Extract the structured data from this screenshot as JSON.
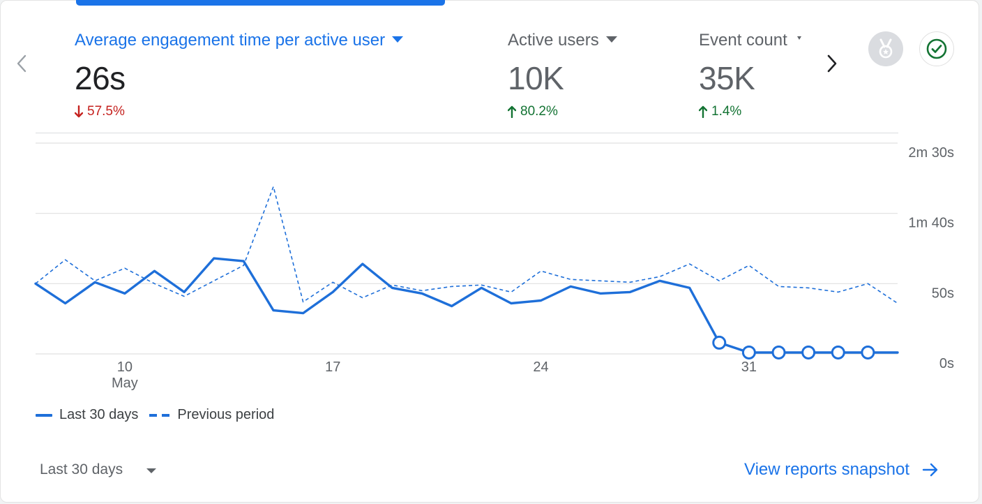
{
  "metrics": [
    {
      "label": "Average engagement time per active user",
      "value": "26s",
      "delta": "57.5%",
      "direction": "down",
      "active": true
    },
    {
      "label": "Active users",
      "value": "10K",
      "delta": "80.2%",
      "direction": "up",
      "active": false
    },
    {
      "label": "Event count",
      "value": "35K",
      "delta": "1.4%",
      "direction": "up",
      "active": false
    }
  ],
  "icons": {
    "prev": "chevron-left-icon",
    "next": "chevron-right-icon",
    "badge": "medal-icon",
    "check": "check-circle-icon"
  },
  "colors": {
    "accent": "#1a73e8",
    "line": "#1e6fd9",
    "down": "#c5221f",
    "up": "#137333",
    "grid": "#e0e0e0",
    "muted": "#5f6368"
  },
  "chart_data": {
    "type": "line",
    "y_unit": "seconds",
    "ylim": [
      0,
      150
    ],
    "yticks": [
      {
        "value": 150,
        "label": "2m 30s"
      },
      {
        "value": 100,
        "label": "1m 40s"
      },
      {
        "value": 50,
        "label": "50s"
      },
      {
        "value": 0,
        "label": "0s"
      }
    ],
    "x_start": "2024-05-07",
    "x_end": "2024-06-05",
    "xticks": [
      {
        "date": "2024-05-10",
        "label": "10",
        "sublabel": "May"
      },
      {
        "date": "2024-05-17",
        "label": "17",
        "sublabel": ""
      },
      {
        "date": "2024-05-24",
        "label": "24",
        "sublabel": ""
      },
      {
        "date": "2024-05-31",
        "label": "31",
        "sublabel": ""
      }
    ],
    "grid": true,
    "legend_position": "bottom-left",
    "series": [
      {
        "name": "Last 30 days",
        "style": "solid",
        "values": [
          {
            "x": "2024-05-07",
            "y": 50
          },
          {
            "x": "2024-05-08",
            "y": 36
          },
          {
            "x": "2024-05-09",
            "y": 51
          },
          {
            "x": "2024-05-10",
            "y": 43
          },
          {
            "x": "2024-05-11",
            "y": 59
          },
          {
            "x": "2024-05-12",
            "y": 44
          },
          {
            "x": "2024-05-13",
            "y": 68
          },
          {
            "x": "2024-05-14",
            "y": 66
          },
          {
            "x": "2024-05-15",
            "y": 31
          },
          {
            "x": "2024-05-16",
            "y": 29
          },
          {
            "x": "2024-05-17",
            "y": 44
          },
          {
            "x": "2024-05-18",
            "y": 64
          },
          {
            "x": "2024-05-19",
            "y": 47
          },
          {
            "x": "2024-05-20",
            "y": 43
          },
          {
            "x": "2024-05-21",
            "y": 34
          },
          {
            "x": "2024-05-22",
            "y": 47
          },
          {
            "x": "2024-05-23",
            "y": 36
          },
          {
            "x": "2024-05-24",
            "y": 38
          },
          {
            "x": "2024-05-25",
            "y": 48
          },
          {
            "x": "2024-05-26",
            "y": 43
          },
          {
            "x": "2024-05-27",
            "y": 44
          },
          {
            "x": "2024-05-28",
            "y": 52
          },
          {
            "x": "2024-05-29",
            "y": 47
          },
          {
            "x": "2024-05-30",
            "y": 8
          },
          {
            "x": "2024-05-31",
            "y": 1
          },
          {
            "x": "2024-06-01",
            "y": 1
          },
          {
            "x": "2024-06-02",
            "y": 1
          },
          {
            "x": "2024-06-03",
            "y": 1
          },
          {
            "x": "2024-06-04",
            "y": 1
          },
          {
            "x": "2024-06-05",
            "y": 1
          }
        ],
        "hollow_marker_from": "2024-05-30",
        "hollow_marker_to": "2024-06-04"
      },
      {
        "name": "Previous period",
        "style": "dashed",
        "values": [
          {
            "x": "2024-05-07",
            "y": 50
          },
          {
            "x": "2024-05-08",
            "y": 67
          },
          {
            "x": "2024-05-09",
            "y": 52
          },
          {
            "x": "2024-05-10",
            "y": 61
          },
          {
            "x": "2024-05-11",
            "y": 50
          },
          {
            "x": "2024-05-12",
            "y": 41
          },
          {
            "x": "2024-05-13",
            "y": 52
          },
          {
            "x": "2024-05-14",
            "y": 63
          },
          {
            "x": "2024-05-15",
            "y": 119
          },
          {
            "x": "2024-05-16",
            "y": 37
          },
          {
            "x": "2024-05-17",
            "y": 51
          },
          {
            "x": "2024-05-18",
            "y": 40
          },
          {
            "x": "2024-05-19",
            "y": 49
          },
          {
            "x": "2024-05-20",
            "y": 45
          },
          {
            "x": "2024-05-21",
            "y": 48
          },
          {
            "x": "2024-05-22",
            "y": 49
          },
          {
            "x": "2024-05-23",
            "y": 44
          },
          {
            "x": "2024-05-24",
            "y": 59
          },
          {
            "x": "2024-05-25",
            "y": 53
          },
          {
            "x": "2024-05-26",
            "y": 52
          },
          {
            "x": "2024-05-27",
            "y": 51
          },
          {
            "x": "2024-05-28",
            "y": 55
          },
          {
            "x": "2024-05-29",
            "y": 64
          },
          {
            "x": "2024-05-30",
            "y": 52
          },
          {
            "x": "2024-05-31",
            "y": 63
          },
          {
            "x": "2024-06-01",
            "y": 48
          },
          {
            "x": "2024-06-02",
            "y": 47
          },
          {
            "x": "2024-06-03",
            "y": 44
          },
          {
            "x": "2024-06-04",
            "y": 50
          },
          {
            "x": "2024-06-05",
            "y": 36
          }
        ]
      }
    ]
  },
  "legend": {
    "current_label": "Last 30 days",
    "previous_label": "Previous period"
  },
  "footer": {
    "date_range": "Last 30 days",
    "view_link": "View reports snapshot"
  }
}
